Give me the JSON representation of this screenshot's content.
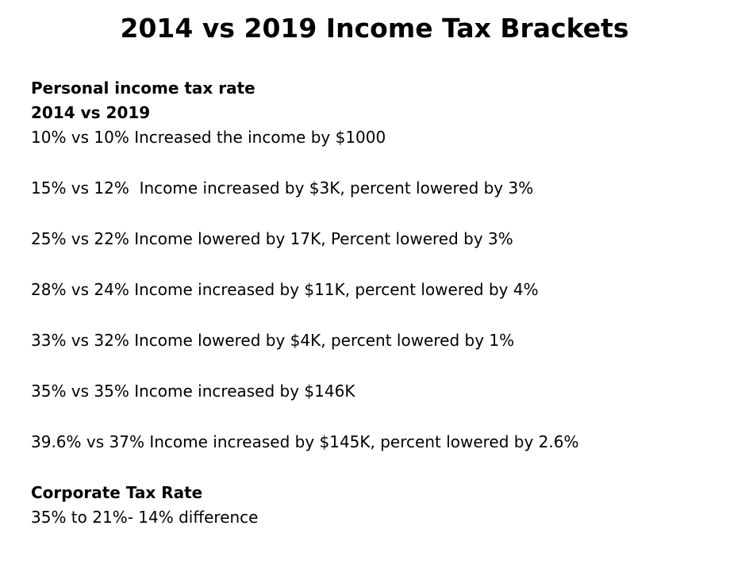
{
  "title": "2014 vs 2019 Income Tax Brackets",
  "personal": {
    "heading": "Personal income tax rate",
    "subheading": "2014 vs 2019",
    "items": [
      "10% vs 10% Increased the income by $1000",
      "15% vs 12%  Income increased by $3K, percent lowered by 3%",
      "25% vs 22% Income lowered by 17K, Percent lowered by 3%",
      "28% vs 24% Income increased by $11K, percent lowered by 4%",
      "33% vs 32% Income lowered by $4K, percent lowered by 1%",
      "35% vs 35% Income increased by $146K",
      "39.6% vs 37% Income increased by $145K, percent lowered by 2.6%"
    ]
  },
  "corporate": {
    "heading": "Corporate Tax Rate",
    "text": "35% to 21%- 14% difference"
  }
}
